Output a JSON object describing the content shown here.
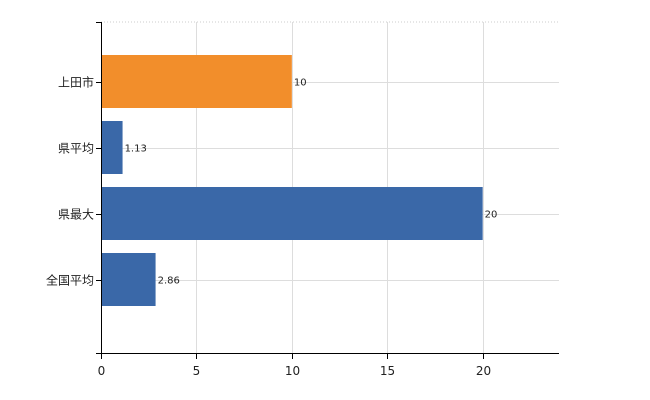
{
  "chart_data": {
    "type": "bar",
    "orientation": "horizontal",
    "categories": [
      "上田市",
      "県平均",
      "県最大",
      "全国平均"
    ],
    "values": [
      10,
      1.13,
      20,
      2.86
    ],
    "data_labels": [
      "10",
      "1.13",
      "20",
      "2.86"
    ],
    "bar_colors": [
      "#F28E2B",
      "#3A68A8",
      "#3A68A8",
      "#3A68A8"
    ],
    "xlim": [
      0,
      24
    ],
    "xticks": [
      0,
      5,
      10,
      15,
      20
    ],
    "xtick_labels": [
      "0",
      "5",
      "10",
      "15",
      "20"
    ],
    "grid": true,
    "legend": "none"
  }
}
